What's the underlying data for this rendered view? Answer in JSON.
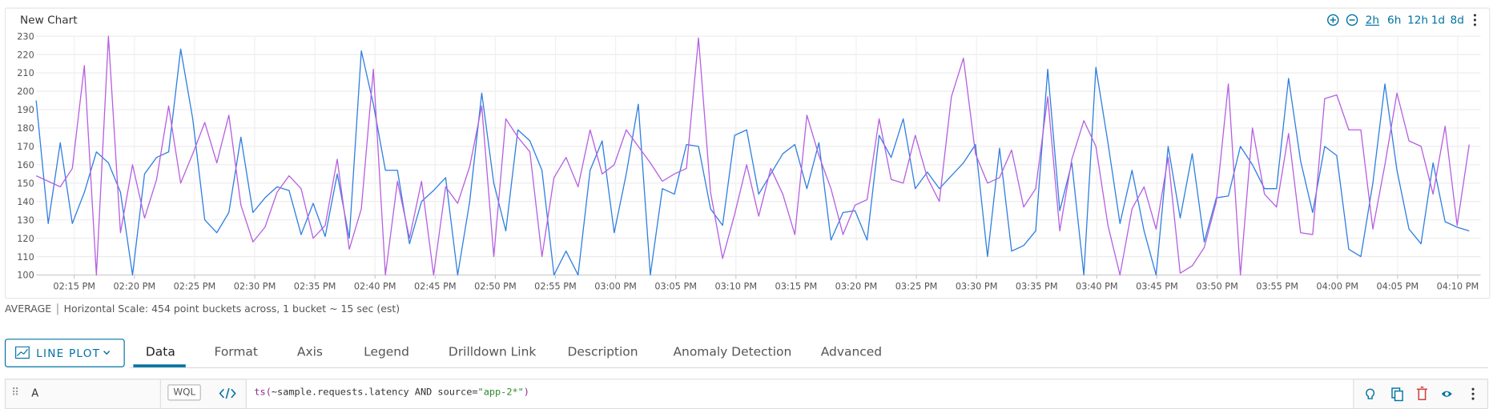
{
  "chart_data": {
    "type": "line",
    "title": "New Chart",
    "ylim": [
      100,
      230
    ],
    "yticks": [
      100,
      110,
      120,
      130,
      140,
      150,
      160,
      170,
      180,
      190,
      200,
      210,
      220,
      230
    ],
    "grid": true,
    "xticks": [
      "02:15 PM",
      "02:20 PM",
      "02:25 PM",
      "02:30 PM",
      "02:35 PM",
      "02:40 PM",
      "02:45 PM",
      "02:50 PM",
      "02:55 PM",
      "03:00 PM",
      "03:05 PM",
      "03:10 PM",
      "03:15 PM",
      "03:20 PM",
      "03:25 PM",
      "03:30 PM",
      "03:35 PM",
      "03:40 PM",
      "03:45 PM",
      "03:50 PM",
      "03:55 PM",
      "04:00 PM",
      "04:05 PM",
      "04:10 PM"
    ],
    "series": [
      {
        "color": "#2f7fdf",
        "values": [
          195,
          128,
          172,
          128,
          145,
          167,
          161,
          145,
          100,
          155,
          164,
          167,
          223,
          185,
          130,
          123,
          134,
          175,
          134,
          142,
          148,
          146,
          122,
          139,
          121,
          155,
          120,
          222,
          193,
          157,
          157,
          117,
          140,
          146,
          153,
          100,
          140,
          199,
          150,
          124,
          179,
          173,
          157,
          100,
          113,
          100,
          157,
          173,
          123,
          155,
          193,
          100,
          147,
          144,
          171,
          170,
          136,
          127,
          176,
          179,
          144,
          155,
          166,
          171,
          147,
          172,
          119,
          134,
          135,
          119,
          176,
          164,
          185,
          147,
          156,
          147,
          154,
          161,
          171,
          110,
          169,
          113,
          116,
          124,
          212,
          135,
          161,
          100,
          213,
          172,
          128,
          157,
          124,
          100,
          170,
          131,
          166,
          118,
          142,
          143,
          170,
          160,
          147,
          147,
          207,
          162,
          134,
          170,
          165,
          114,
          110,
          150,
          204,
          157,
          125,
          117,
          161,
          129,
          126,
          124
        ]
      },
      {
        "color": "#b65fe0",
        "values": [
          154,
          151,
          148,
          158,
          214,
          100,
          230,
          123,
          160,
          131,
          152,
          192,
          150,
          166,
          183,
          161,
          187,
          138,
          118,
          126,
          145,
          154,
          147,
          120,
          127,
          163,
          114,
          136,
          212,
          100,
          151,
          120,
          151,
          100,
          148,
          139,
          159,
          192,
          110,
          185,
          175,
          167,
          110,
          153,
          164,
          148,
          179,
          155,
          160,
          179,
          170,
          161,
          151,
          155,
          158,
          229,
          145,
          109,
          133,
          160,
          132,
          158,
          144,
          122,
          187,
          165,
          147,
          122,
          138,
          141,
          185,
          152,
          150,
          176,
          153,
          140,
          197,
          218,
          166,
          150,
          153,
          168,
          137,
          147,
          197,
          124,
          163,
          184,
          170,
          127,
          100,
          136,
          148,
          125,
          164,
          101,
          105,
          115,
          140,
          204,
          100,
          180,
          144,
          137,
          177,
          123,
          122,
          196,
          198,
          179,
          179,
          125,
          160,
          199,
          173,
          170,
          144,
          181,
          127,
          171
        ]
      }
    ]
  },
  "time_ranges": [
    "2h",
    "6h",
    "12h",
    "1d",
    "8d"
  ],
  "summary": {
    "label": "AVERAGE",
    "text": "Horizontal Scale: 454 point buckets across, 1 bucket ~ 15 sec (est)"
  },
  "plot_type": "LINE PLOT",
  "tabs": [
    "Data",
    "Format",
    "Axis",
    "Legend",
    "Drilldown Link",
    "Description",
    "Anomaly Detection",
    "Advanced"
  ],
  "query": {
    "name": "A",
    "language": "WQL",
    "expression": [
      "ts(",
      "~sample.requests.latency AND source=",
      "\"app-2*\"",
      ")"
    ]
  }
}
